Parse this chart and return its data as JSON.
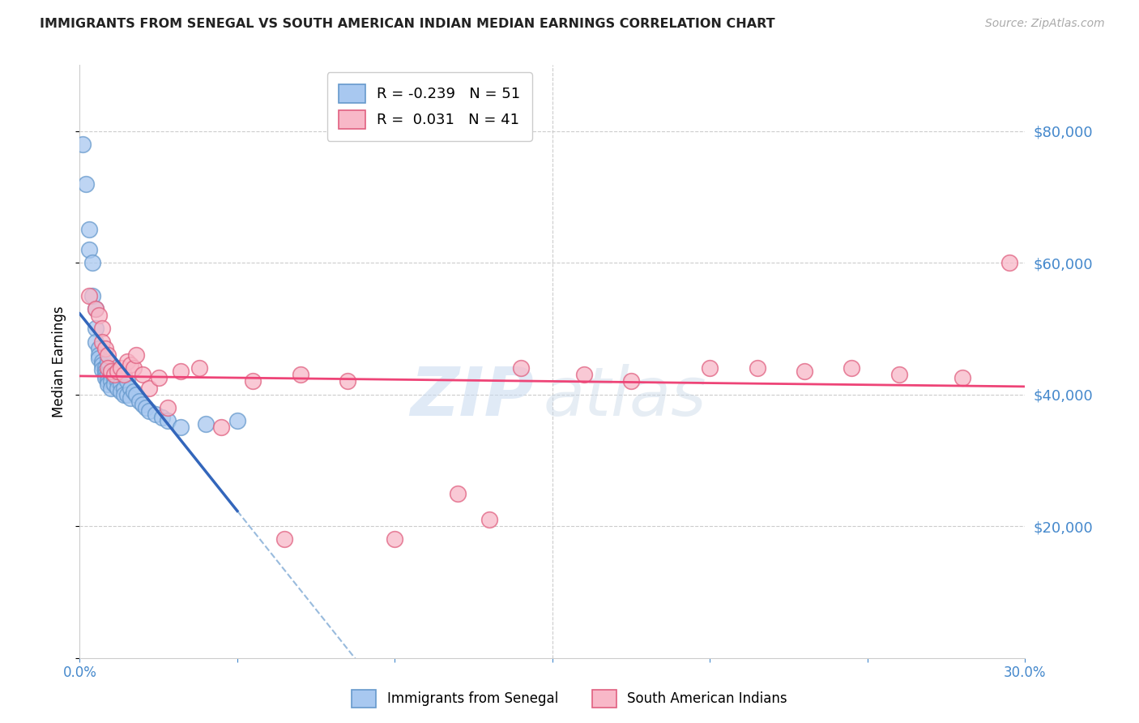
{
  "title": "IMMIGRANTS FROM SENEGAL VS SOUTH AMERICAN INDIAN MEDIAN EARNINGS CORRELATION CHART",
  "source": "Source: ZipAtlas.com",
  "ylabel": "Median Earnings",
  "xlim": [
    0.0,
    0.3
  ],
  "ylim": [
    0,
    90000
  ],
  "yticks": [
    0,
    20000,
    40000,
    60000,
    80000
  ],
  "xticks": [
    0.0,
    0.05,
    0.1,
    0.15,
    0.2,
    0.25,
    0.3
  ],
  "xtick_labels": [
    "0.0%",
    "",
    "",
    "",
    "",
    "",
    "30.0%"
  ],
  "watermark_zip": "ZIP",
  "watermark_atlas": "atlas",
  "blue_R": -0.239,
  "blue_N": 51,
  "pink_R": 0.031,
  "pink_N": 41,
  "blue_fill": "#a8c8f0",
  "blue_edge": "#6699cc",
  "pink_fill": "#f8b8c8",
  "pink_edge": "#e06080",
  "blue_line_color": "#3366bb",
  "pink_line_color": "#ee4477",
  "dashed_line_color": "#99bbdd",
  "axis_color": "#4488cc",
  "grid_color": "#cccccc",
  "title_color": "#222222",
  "source_color": "#aaaaaa",
  "blue_points_x": [
    0.001,
    0.002,
    0.003,
    0.003,
    0.004,
    0.004,
    0.005,
    0.005,
    0.005,
    0.006,
    0.006,
    0.006,
    0.007,
    0.007,
    0.007,
    0.008,
    0.008,
    0.008,
    0.008,
    0.009,
    0.009,
    0.009,
    0.009,
    0.01,
    0.01,
    0.01,
    0.01,
    0.011,
    0.011,
    0.012,
    0.012,
    0.013,
    0.013,
    0.014,
    0.014,
    0.015,
    0.015,
    0.016,
    0.016,
    0.017,
    0.018,
    0.019,
    0.02,
    0.021,
    0.022,
    0.024,
    0.026,
    0.028,
    0.032,
    0.04,
    0.05
  ],
  "blue_points_y": [
    78000,
    72000,
    65000,
    62000,
    60000,
    55000,
    53000,
    50000,
    48000,
    47000,
    46000,
    45500,
    45000,
    44500,
    43800,
    44200,
    43500,
    43000,
    42500,
    45000,
    43000,
    42000,
    41500,
    43500,
    43000,
    42000,
    41000,
    42500,
    41500,
    42000,
    41000,
    41500,
    40500,
    41000,
    40000,
    42000,
    40000,
    41000,
    39500,
    40500,
    40000,
    39000,
    38500,
    38000,
    37500,
    37000,
    36500,
    36000,
    35000,
    35500,
    36000
  ],
  "pink_points_x": [
    0.003,
    0.005,
    0.006,
    0.007,
    0.007,
    0.008,
    0.009,
    0.009,
    0.01,
    0.011,
    0.012,
    0.013,
    0.014,
    0.015,
    0.016,
    0.017,
    0.018,
    0.02,
    0.022,
    0.025,
    0.028,
    0.032,
    0.038,
    0.045,
    0.055,
    0.065,
    0.07,
    0.085,
    0.1,
    0.12,
    0.13,
    0.14,
    0.16,
    0.175,
    0.2,
    0.215,
    0.23,
    0.245,
    0.26,
    0.28,
    0.295
  ],
  "pink_points_y": [
    55000,
    53000,
    52000,
    50000,
    48000,
    47000,
    46000,
    44000,
    43500,
    43000,
    43500,
    44000,
    43000,
    45000,
    44500,
    44000,
    46000,
    43000,
    41000,
    42500,
    38000,
    43500,
    44000,
    35000,
    42000,
    18000,
    43000,
    42000,
    18000,
    25000,
    21000,
    44000,
    43000,
    42000,
    44000,
    44000,
    43500,
    44000,
    43000,
    42500,
    60000
  ]
}
